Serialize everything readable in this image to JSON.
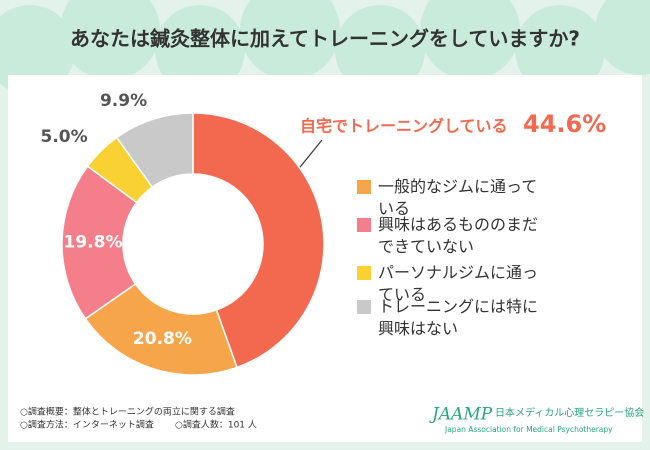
{
  "chart_data": {
    "type": "donut",
    "title": "あなたは鍼灸整体に加えてトレーニングをしていますか?",
    "categories": [
      "自宅でトレーニングしている",
      "一般的なジムに通っている",
      "興味はあるもののまだできていない",
      "パーソナルジムに通っている",
      "トレーニングには特に興味はない"
    ],
    "values": [
      44.6,
      20.8,
      19.8,
      5.0,
      9.9
    ],
    "value_labels": [
      "44.6%",
      "20.8%",
      "19.8%",
      "5.0%",
      "9.9%"
    ],
    "colors": [
      "#f2694f",
      "#f7a54b",
      "#f47e89",
      "#f9d133",
      "#c9c9c9"
    ]
  },
  "footnotes": [
    "○調査概要：整体とトレーニングの両立に関する調査",
    "○調査方法：インターネット調査",
    "○調査人数：101 人"
  ],
  "logo": {
    "mark": "JAAMP",
    "name": "日本メディカル心理セラピー協会",
    "english": "Japan Association for Medical Psychotherapy"
  }
}
